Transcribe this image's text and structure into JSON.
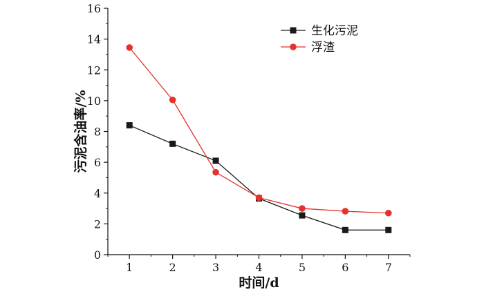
{
  "chart_data": {
    "type": "line",
    "xlabel": "时间/d",
    "ylabel": "污泥含油率/%",
    "x": [
      1,
      2,
      3,
      4,
      5,
      6,
      7
    ],
    "xlim": [
      0.5,
      7.5
    ],
    "ylim": [
      0,
      16
    ],
    "yticks": [
      0,
      2,
      4,
      6,
      8,
      10,
      12,
      14,
      16
    ],
    "xticks": [
      1,
      2,
      3,
      4,
      5,
      6,
      7
    ],
    "grid": false,
    "legend_position": "top-right",
    "series": [
      {
        "name": "生化污泥",
        "color": "#1a1a1a",
        "marker": "square",
        "values": [
          8.4,
          7.2,
          6.1,
          3.65,
          2.55,
          1.6,
          1.6
        ]
      },
      {
        "name": "浮渣",
        "color": "#e5322d",
        "marker": "circle",
        "values": [
          13.45,
          10.05,
          5.35,
          3.7,
          3.0,
          2.82,
          2.7
        ]
      }
    ]
  }
}
